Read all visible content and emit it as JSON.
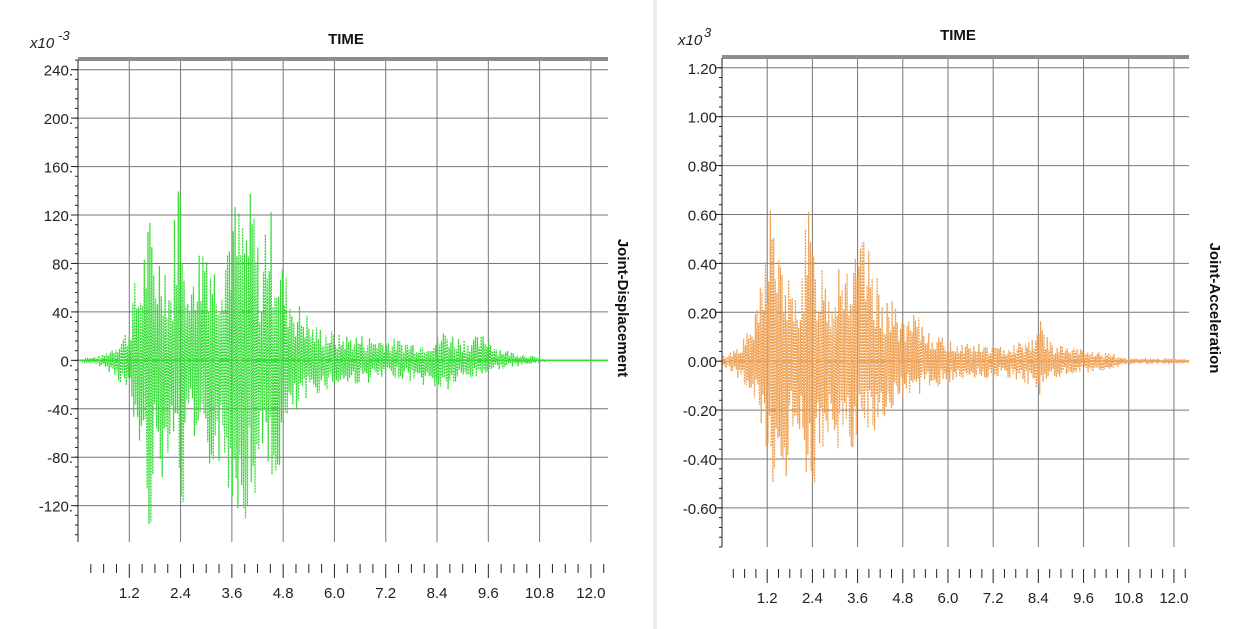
{
  "chart_data": [
    {
      "type": "line",
      "title": "TIME",
      "ylabel": "Joint-Displacement",
      "multiplier": "x10",
      "exponent": "-3",
      "xlim": [
        0.0,
        12.4
      ],
      "ylim": [
        -150,
        248
      ],
      "x_ticks": [
        "1.2",
        "2.4",
        "3.6",
        "4.8",
        "6.0",
        "7.2",
        "8.4",
        "9.6",
        "10.8",
        "12.0"
      ],
      "y_ticks": [
        "240.",
        "200.",
        "160.",
        "120.",
        "80.",
        "40.",
        "0.",
        "-40.",
        "-80.",
        "-120."
      ],
      "y_tick_values": [
        240,
        200,
        160,
        120,
        80,
        40,
        0,
        -40,
        -80,
        -120
      ],
      "grid": true,
      "series": [
        {
          "color": "#33dd33",
          "x": [
            0.0,
            0.6,
            0.9,
            1.2,
            1.3,
            1.45,
            1.6,
            1.7,
            1.8,
            2.0,
            2.2,
            2.3,
            2.4,
            2.5,
            2.6,
            2.7,
            2.8,
            3.0,
            3.2,
            3.4,
            3.6,
            3.9,
            4.1,
            4.3,
            4.4,
            4.55,
            4.7,
            4.9,
            5.1,
            5.3,
            5.5,
            5.8,
            6.1,
            6.5,
            7.0,
            7.5,
            8.0,
            8.4,
            8.6,
            8.8,
            9.0,
            9.4,
            9.6,
            9.8,
            10.1,
            10.5,
            10.8,
            11.0,
            12.4
          ],
          "y": [
            0,
            5,
            15,
            30,
            65,
            70,
            115,
            120,
            90,
            105,
            60,
            170,
            175,
            135,
            35,
            115,
            95,
            125,
            85,
            110,
            138,
            125,
            148,
            60,
            145,
            120,
            95,
            70,
            50,
            45,
            30,
            28,
            22,
            22,
            20,
            18,
            15,
            20,
            28,
            22,
            20,
            20,
            25,
            12,
            8,
            5,
            2,
            0,
            0
          ],
          "y_lower": [
            0,
            -6,
            -15,
            -30,
            -60,
            -75,
            -120,
            -150,
            -95,
            -100,
            -55,
            -90,
            -120,
            -140,
            -30,
            -95,
            -90,
            -115,
            -80,
            -100,
            -120,
            -130,
            -145,
            -60,
            -110,
            -140,
            -95,
            -60,
            -50,
            -40,
            -30,
            -25,
            -22,
            -20,
            -18,
            -15,
            -20,
            -25,
            -28,
            -22,
            -18,
            -15,
            -10,
            -8,
            -6,
            -4,
            -2,
            0,
            0
          ]
        }
      ]
    },
    {
      "type": "line",
      "title": "TIME",
      "ylabel": "Joint-Acceleration",
      "multiplier": "x10",
      "exponent": "3",
      "xlim": [
        0.0,
        12.4
      ],
      "ylim": [
        -0.76,
        1.24
      ],
      "x_ticks": [
        "1.2",
        "2.4",
        "3.6",
        "4.8",
        "6.0",
        "7.2",
        "8.4",
        "9.6",
        "10.8",
        "12.0"
      ],
      "y_ticks": [
        "1.20",
        "1.00",
        "0.80",
        "0.60",
        "0.40",
        "0.20",
        "0.00",
        "-0.20",
        "-0.40",
        "-0.60"
      ],
      "y_tick_values": [
        1.2,
        1.0,
        0.8,
        0.6,
        0.4,
        0.2,
        0.0,
        -0.2,
        -0.4,
        -0.6
      ],
      "grid": true,
      "series": [
        {
          "color": "#f0a050",
          "x": [
            0.0,
            0.3,
            0.6,
            0.9,
            1.1,
            1.3,
            1.5,
            1.7,
            1.9,
            2.1,
            2.3,
            2.5,
            2.7,
            2.9,
            3.1,
            3.3,
            3.5,
            3.7,
            3.9,
            4.1,
            4.3,
            4.5,
            4.7,
            4.9,
            5.1,
            5.4,
            5.8,
            6.2,
            6.6,
            7.0,
            7.4,
            7.8,
            8.2,
            8.5,
            8.7,
            8.9,
            9.2,
            9.6,
            10.0,
            10.4,
            10.8,
            12.4
          ],
          "y": [
            0.02,
            0.05,
            0.1,
            0.2,
            0.4,
            0.75,
            0.45,
            0.4,
            0.25,
            0.4,
            0.65,
            0.4,
            0.45,
            0.3,
            0.5,
            0.45,
            0.4,
            0.53,
            0.45,
            0.35,
            0.3,
            0.25,
            0.22,
            0.15,
            0.2,
            0.15,
            0.1,
            0.08,
            0.08,
            0.07,
            0.06,
            0.08,
            0.1,
            0.18,
            0.08,
            0.07,
            0.06,
            0.05,
            0.04,
            0.03,
            0.01,
            0.01
          ],
          "y_lower": [
            -0.02,
            -0.05,
            -0.1,
            -0.2,
            -0.4,
            -0.55,
            -0.45,
            -0.55,
            -0.25,
            -0.35,
            -0.75,
            -0.45,
            -0.5,
            -0.3,
            -0.45,
            -0.4,
            -0.4,
            -0.35,
            -0.3,
            -0.3,
            -0.25,
            -0.2,
            -0.18,
            -0.15,
            -0.15,
            -0.12,
            -0.1,
            -0.08,
            -0.07,
            -0.07,
            -0.06,
            -0.08,
            -0.1,
            -0.16,
            -0.08,
            -0.07,
            -0.06,
            -0.05,
            -0.04,
            -0.03,
            -0.01,
            -0.01
          ]
        }
      ]
    }
  ]
}
